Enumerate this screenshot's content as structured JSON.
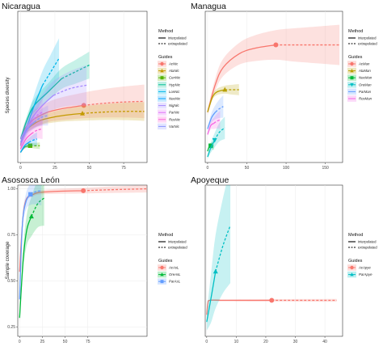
{
  "figure": {
    "y_label_top": "Species diversity",
    "y_label_bottom": "Sample coverage",
    "legend_method_title": "Method",
    "legend_guides_title": "Guides",
    "method_labels": [
      "interpolated",
      "extrapolated"
    ]
  },
  "chart_data": [
    {
      "type": "line",
      "title": "Nicaragua",
      "x_ticks": [
        0,
        25,
        50,
        75
      ],
      "y_ticks": [],
      "xlim": [
        -2,
        92
      ],
      "ylim": [
        -0.5,
        22
      ],
      "legend_guides": [
        "AcNic",
        "AtaNic",
        "CenNic",
        "HypNic",
        "LonNic",
        "NeeNic",
        "NigNic",
        "ParNic",
        "RosNic",
        "VarNic"
      ],
      "series": [
        {
          "color": "#f8766d",
          "marker": "circle",
          "x": [
            0,
            2,
            5,
            10,
            20,
            30,
            46
          ],
          "y": [
            2,
            4,
            5,
            6,
            7,
            7.5,
            8
          ],
          "ext_x": [
            46,
            60,
            75,
            90
          ],
          "ext_y": [
            8,
            8.3,
            8.5,
            8.6
          ],
          "band": 2.5
        },
        {
          "color": "#c49a00",
          "marker": "triangle",
          "x": [
            0,
            3,
            8,
            15,
            25,
            35,
            45
          ],
          "y": [
            2,
            4,
            5,
            5.8,
            6.3,
            6.6,
            6.8
          ],
          "ext_x": [
            45,
            60,
            75,
            90
          ],
          "ext_y": [
            6.8,
            7,
            7.1,
            7.1
          ],
          "band": 1.4
        },
        {
          "color": "#53b400",
          "marker": "square",
          "x": [
            0,
            3,
            7
          ],
          "y": [
            1,
            1.8,
            2
          ],
          "ext_x": [
            7,
            10,
            14
          ],
          "ext_y": [
            2,
            2,
            2
          ],
          "band": 0.5
        },
        {
          "color": "#00c094",
          "marker": "none",
          "x": [
            0,
            5,
            10,
            20,
            30
          ],
          "y": [
            3,
            6,
            8,
            10,
            12
          ],
          "ext_x": [
            30,
            40,
            50
          ],
          "ext_y": [
            12,
            13,
            14
          ],
          "band": 2
        },
        {
          "color": "#00b6eb",
          "marker": "none",
          "x": [
            0,
            5,
            10,
            16
          ],
          "y": [
            2,
            5,
            8,
            11
          ],
          "ext_x": [
            16,
            22,
            28
          ],
          "ext_y": [
            11,
            13,
            15
          ],
          "band": 3
        },
        {
          "color": "#06a4ff",
          "marker": "none",
          "x": [
            0,
            3,
            6
          ],
          "y": [
            1,
            2,
            2.5
          ],
          "ext_x": [
            6,
            9,
            12
          ],
          "ext_y": [
            2.5,
            2.8,
            3
          ],
          "band": 1
        },
        {
          "color": "#a58aff",
          "marker": "none",
          "x": [
            0,
            8,
            16,
            24
          ],
          "y": [
            3,
            6,
            8,
            9.5
          ],
          "ext_x": [
            24,
            36,
            48
          ],
          "ext_y": [
            9.5,
            10.5,
            11
          ],
          "band": 3
        },
        {
          "color": "#df70f8",
          "marker": "none",
          "x": [
            0,
            4,
            8
          ],
          "y": [
            2,
            4,
            5.5
          ],
          "ext_x": [
            8,
            12,
            16
          ],
          "ext_y": [
            5.5,
            6.5,
            7
          ],
          "band": 2
        },
        {
          "color": "#fb61d7",
          "marker": "none",
          "x": [
            0,
            4,
            8
          ],
          "y": [
            1.5,
            3,
            3.8
          ],
          "ext_x": [
            8,
            12,
            16
          ],
          "ext_y": [
            3.8,
            4.3,
            4.5
          ],
          "band": 1.5
        },
        {
          "color": "#8b93ff",
          "marker": "none",
          "x": [
            0,
            5,
            10
          ],
          "y": [
            2.5,
            4.5,
            5.5
          ],
          "ext_x": [
            10,
            15,
            20
          ],
          "ext_y": [
            5.5,
            6.2,
            6.5
          ],
          "band": 1.5
        }
      ]
    },
    {
      "type": "line",
      "title": "Managua",
      "x_ticks": [
        0,
        50,
        100,
        150
      ],
      "y_ticks": [],
      "xlim": [
        -3,
        172
      ],
      "ylim": [
        -0.5,
        13
      ],
      "legend_guides": [
        "AcMan",
        "AtaMan",
        "NeeMan",
        "OreMan",
        "ParMan",
        "RosMan"
      ],
      "series": [
        {
          "color": "#f8766d",
          "marker": "circle",
          "x": [
            0,
            10,
            20,
            40,
            60,
            87
          ],
          "y": [
            4,
            6.5,
            8,
            9.2,
            9.7,
            10
          ],
          "ext_x": [
            87,
            110,
            140,
            168
          ],
          "ext_y": [
            10,
            10,
            10,
            10
          ],
          "band": 1.8
        },
        {
          "color": "#b79f00",
          "marker": "triangle",
          "x": [
            0,
            6,
            12,
            22
          ],
          "y": [
            4,
            5.3,
            5.8,
            6
          ],
          "ext_x": [
            22,
            30,
            40
          ],
          "ext_y": [
            6,
            6,
            6
          ],
          "band": 0.5
        },
        {
          "color": "#00ba38",
          "marker": "square",
          "x": [
            0,
            2,
            4
          ],
          "y": [
            0.5,
            0.9,
            1
          ],
          "ext_x": [
            4,
            6,
            8
          ],
          "ext_y": [
            1,
            1,
            1
          ],
          "band": 0.4
        },
        {
          "color": "#00bfc4",
          "marker": "triangle-down",
          "x": [
            0,
            4,
            9
          ],
          "y": [
            0,
            0.8,
            1.5
          ],
          "ext_x": [
            9,
            15,
            22
          ],
          "ext_y": [
            1.5,
            2.2,
            2.6
          ],
          "band": 1
        },
        {
          "color": "#619cff",
          "marker": "none",
          "x": [
            0,
            5,
            10
          ],
          "y": [
            2.5,
            3.5,
            4
          ],
          "ext_x": [
            10,
            15,
            20
          ],
          "ext_y": [
            4,
            4.3,
            4.5
          ],
          "band": 1
        },
        {
          "color": "#f564e3",
          "marker": "none",
          "x": [
            0,
            4,
            8
          ],
          "y": [
            2,
            2.8,
            3
          ],
          "ext_x": [
            8,
            12,
            16
          ],
          "ext_y": [
            3,
            3.2,
            3.3
          ],
          "band": 0.8
        }
      ]
    },
    {
      "type": "line",
      "title": "Asososca León",
      "x_ticks": [
        0,
        25,
        50,
        75
      ],
      "y_ticks": [
        0.25,
        0.5,
        0.75,
        1.0
      ],
      "y_tick_labels": [
        "0.25",
        "0.50",
        "0.75",
        "1.00"
      ],
      "xlim": [
        -2,
        140
      ],
      "ylim": [
        0.2,
        1.02
      ],
      "legend_guides": [
        "AcAsL",
        "OreAsL",
        "ParAsL"
      ],
      "series": [
        {
          "color": "#f8766d",
          "marker": "circle",
          "x": [
            0,
            5,
            15,
            35,
            70
          ],
          "y": [
            0.55,
            0.9,
            0.97,
            0.985,
            0.99
          ],
          "ext_x": [
            70,
            100,
            140
          ],
          "ext_y": [
            0.99,
            0.995,
            1.0
          ],
          "band": 0.02
        },
        {
          "color": "#00ba38",
          "marker": "triangle",
          "x": [
            0,
            4,
            8,
            13
          ],
          "y": [
            0.3,
            0.62,
            0.78,
            0.85
          ],
          "ext_x": [
            13,
            20,
            27
          ],
          "ext_y": [
            0.85,
            0.92,
            0.95
          ],
          "band": 0.15
        },
        {
          "color": "#619cff",
          "marker": "square",
          "x": [
            0,
            3,
            7,
            12
          ],
          "y": [
            0.4,
            0.8,
            0.93,
            0.97
          ],
          "ext_x": [
            12,
            18,
            24
          ],
          "ext_y": [
            0.97,
            0.985,
            0.99
          ],
          "band": 0.08
        }
      ]
    },
    {
      "type": "line",
      "title": "Apoyeque",
      "x_ticks": [
        0,
        10,
        20,
        30,
        40
      ],
      "y_ticks": [],
      "xlim": [
        -0.5,
        46
      ],
      "ylim": [
        0.5,
        11
      ],
      "legend_guides": [
        "AcApye",
        "ParApye"
      ],
      "series": [
        {
          "color": "#f8766d",
          "marker": "circle",
          "x": [
            0,
            0.4,
            1,
            5,
            10,
            22
          ],
          "y": [
            2,
            2.8,
            3,
            3,
            3,
            3
          ],
          "ext_x": [
            22,
            33,
            44
          ],
          "ext_y": [
            3,
            3,
            3
          ],
          "band": 0.1
        },
        {
          "color": "#00bfc4",
          "marker": "triangle",
          "x": [
            0,
            1.5,
            3
          ],
          "y": [
            1.5,
            3.2,
            5
          ],
          "ext_x": [
            3,
            5.5,
            8
          ],
          "ext_y": [
            5,
            6.8,
            8.2
          ],
          "band": 4
        }
      ]
    }
  ]
}
